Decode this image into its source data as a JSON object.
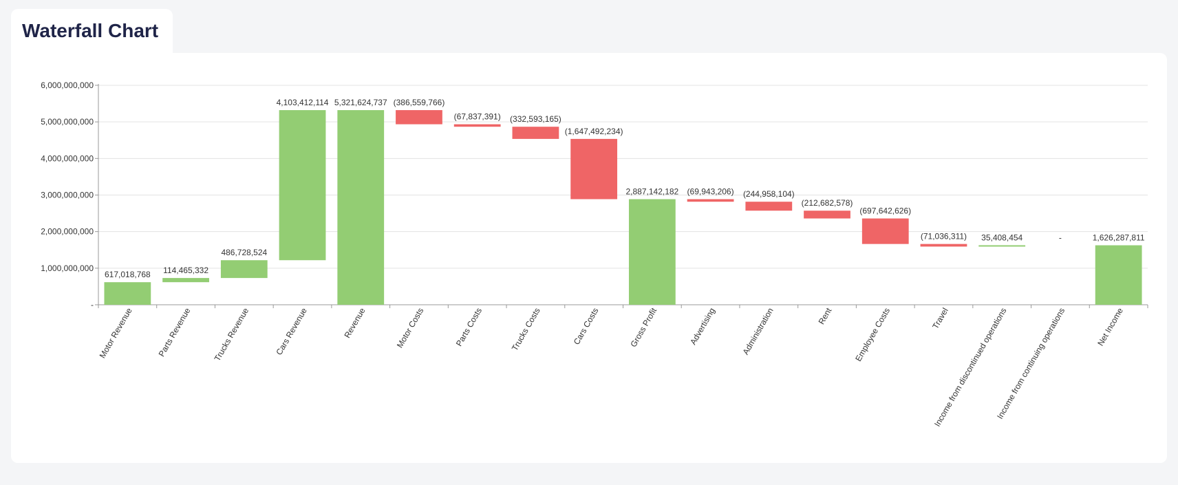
{
  "header": {
    "title": "Waterfall Chart"
  },
  "colors": {
    "increase": "#93cd73",
    "decrease": "#ef6566",
    "total": "#93cd73",
    "grid": "#e3e3e3",
    "axis": "#999999"
  },
  "chart_data": {
    "type": "waterfall",
    "title": "",
    "xlabel": "",
    "ylabel": "",
    "ylim": [
      0,
      6000000000
    ],
    "yticks": [
      {
        "value": 0,
        "label": "-"
      },
      {
        "value": 1000000000,
        "label": "1,000,000,000"
      },
      {
        "value": 2000000000,
        "label": "2,000,000,000"
      },
      {
        "value": 3000000000,
        "label": "3,000,000,000"
      },
      {
        "value": 4000000000,
        "label": "4,000,000,000"
      },
      {
        "value": 5000000000,
        "label": "5,000,000,000"
      },
      {
        "value": 6000000000,
        "label": "6,000,000,000"
      }
    ],
    "grid": true,
    "items": [
      {
        "category": "Motor Revenue",
        "value": 617018768,
        "kind": "increase",
        "label": "617,018,768"
      },
      {
        "category": "Parts Revenue",
        "value": 114465332,
        "kind": "increase",
        "label": "114,465,332"
      },
      {
        "category": "Trucks Revenue",
        "value": 486728524,
        "kind": "increase",
        "label": "486,728,524"
      },
      {
        "category": "Cars Revenue",
        "value": 4103412114,
        "kind": "increase",
        "label": "4,103,412,114"
      },
      {
        "category": "Revenue",
        "value": 5321624737,
        "kind": "total",
        "label": "5,321,624,737"
      },
      {
        "category": "Motor Costs",
        "value": -386559766,
        "kind": "decrease",
        "label": "(386,559,766)"
      },
      {
        "category": "Parts Costs",
        "value": -67837391,
        "kind": "decrease",
        "label": "(67,837,391)"
      },
      {
        "category": "Trucks Costs",
        "value": -332593165,
        "kind": "decrease",
        "label": "(332,593,165)"
      },
      {
        "category": "Cars Costs",
        "value": -1647492234,
        "kind": "decrease",
        "label": "(1,647,492,234)"
      },
      {
        "category": "Gross Profit",
        "value": 2887142182,
        "kind": "total",
        "label": "2,887,142,182"
      },
      {
        "category": "Advertising",
        "value": -69943206,
        "kind": "decrease",
        "label": "(69,943,206)"
      },
      {
        "category": "Administration",
        "value": -244958104,
        "kind": "decrease",
        "label": "(244,958,104)"
      },
      {
        "category": "Rent",
        "value": -212682578,
        "kind": "decrease",
        "label": "(212,682,578)"
      },
      {
        "category": "Employee Costs",
        "value": -697642626,
        "kind": "decrease",
        "label": "(697,642,626)"
      },
      {
        "category": "Travel",
        "value": -71036311,
        "kind": "decrease",
        "label": "(71,036,311)"
      },
      {
        "category": "Income from discontinued operations",
        "value": 35408454,
        "kind": "increase",
        "label": "35,408,454"
      },
      {
        "category": "Income from continuing operations",
        "value": 0,
        "kind": "increase",
        "label": "-"
      },
      {
        "category": "Net Income",
        "value": 1626287811,
        "kind": "total",
        "label": "1,626,287,811"
      }
    ]
  }
}
